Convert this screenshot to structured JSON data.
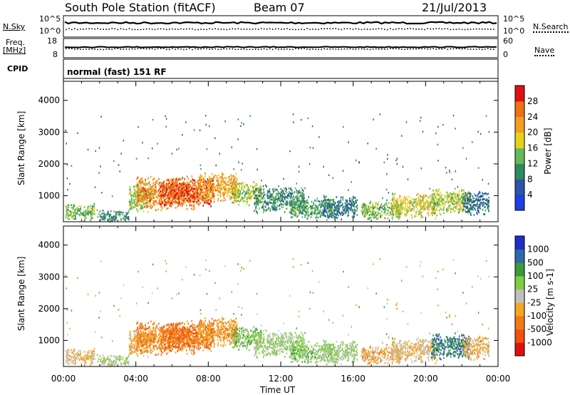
{
  "header": {
    "station": "South Pole Station (fitACF)",
    "beam": "Beam 07",
    "date": "21/Jul/2013"
  },
  "top_panels": {
    "nsky_label": "N.Sky",
    "nsky_ticks": [
      "10^5",
      "10^0"
    ],
    "nsearch_label": "N.Search",
    "nsearch_ticks": [
      "10^5",
      "10^0"
    ],
    "freq_label": "Freq.",
    "freq_unit": "[MHz]",
    "freq_ticks": [
      "18",
      "8"
    ],
    "nave_label": "Nave",
    "nave_ticks": [
      "60",
      "0"
    ],
    "cpid_label": "CPID",
    "cpid_value": "normal (fast) 151 RF"
  },
  "colors": {
    "power": [
      "#1f3fe0",
      "#2b55a8",
      "#2e8a5f",
      "#66b85a",
      "#e6d21e",
      "#f0a020",
      "#f07018",
      "#e01010"
    ],
    "velocity": [
      "#e01010",
      "#f05010",
      "#f07a18",
      "#f6a623",
      "#c0c0c0",
      "#7fd040",
      "#3d9a3a",
      "#2e6aa8",
      "#1e2fc8"
    ]
  },
  "chart_data": [
    {
      "type": "heatmap",
      "name": "power",
      "xlabel": "",
      "ylabel": "Slant Range [km]",
      "xlim": [
        "00:00",
        "24:00"
      ],
      "ylim": [
        180,
        4600
      ],
      "yticks": [
        "1000",
        "2000",
        "3000",
        "4000"
      ],
      "colorbar_label": "Power [dB]",
      "colorbar_ticks": [
        "4",
        "8",
        "12",
        "16",
        "20",
        "24",
        "28"
      ],
      "colorbar_range": [
        0,
        32
      ],
      "blobs": [
        {
          "t0": 0.1,
          "t1": 1.7,
          "r0": 220,
          "r1": 800,
          "v": 14
        },
        {
          "t0": 1.8,
          "t1": 3.6,
          "r0": 200,
          "r1": 600,
          "v": 10
        },
        {
          "t0": 3.6,
          "t1": 4.8,
          "r0": 500,
          "r1": 1450,
          "v": 14
        },
        {
          "t0": 4.0,
          "t1": 7.4,
          "r0": 550,
          "r1": 1650,
          "v": 24
        },
        {
          "t0": 5.3,
          "t1": 8.3,
          "r0": 650,
          "r1": 1600,
          "v": 28
        },
        {
          "t0": 7.4,
          "t1": 9.6,
          "r0": 800,
          "r1": 1800,
          "v": 22
        },
        {
          "t0": 9.3,
          "t1": 10.9,
          "r0": 700,
          "r1": 1500,
          "v": 16
        },
        {
          "t0": 10.5,
          "t1": 13.3,
          "r0": 450,
          "r1": 1350,
          "v": 10
        },
        {
          "t0": 12.5,
          "t1": 14.8,
          "r0": 300,
          "r1": 1000,
          "v": 12
        },
        {
          "t0": 14.3,
          "t1": 16.2,
          "r0": 250,
          "r1": 1050,
          "v": 8
        },
        {
          "t0": 16.4,
          "t1": 18.6,
          "r0": 250,
          "r1": 900,
          "v": 14
        },
        {
          "t0": 18.1,
          "t1": 20.6,
          "r0": 300,
          "r1": 1100,
          "v": 18
        },
        {
          "t0": 20.3,
          "t1": 22.4,
          "r0": 400,
          "r1": 1300,
          "v": 16
        },
        {
          "t0": 22.0,
          "t1": 23.5,
          "r0": 400,
          "r1": 1200,
          "v": 8
        }
      ]
    },
    {
      "type": "heatmap",
      "name": "velocity",
      "xlabel": "Time UT",
      "ylabel": "Slant Range [km]",
      "xlim": [
        "00:00",
        "24:00"
      ],
      "ylim": [
        180,
        4600
      ],
      "xticks": [
        "00:00",
        "04:00",
        "08:00",
        "12:00",
        "16:00",
        "20:00",
        "00:00"
      ],
      "yticks": [
        "1000",
        "2000",
        "3000",
        "4000"
      ],
      "colorbar_label": "Velocity [m s-1]",
      "colorbar_ticks": [
        "-1000",
        "-500",
        "-100",
        "-25",
        "25",
        "100",
        "500",
        "1000"
      ],
      "colorbar_range": [
        -1200,
        1200
      ],
      "blobs": [
        {
          "t0": 0.1,
          "t1": 1.7,
          "r0": 220,
          "r1": 800,
          "v": -150
        },
        {
          "t0": 1.8,
          "t1": 3.6,
          "r0": 200,
          "r1": 600,
          "v": 80
        },
        {
          "t0": 3.6,
          "t1": 4.8,
          "r0": 500,
          "r1": 1450,
          "v": -300
        },
        {
          "t0": 4.0,
          "t1": 7.4,
          "r0": 550,
          "r1": 1650,
          "v": -450
        },
        {
          "t0": 5.3,
          "t1": 8.3,
          "r0": 650,
          "r1": 1600,
          "v": -600
        },
        {
          "t0": 7.4,
          "t1": 9.6,
          "r0": 800,
          "r1": 1800,
          "v": -400
        },
        {
          "t0": 9.3,
          "t1": 10.9,
          "r0": 700,
          "r1": 1500,
          "v": 300
        },
        {
          "t0": 10.5,
          "t1": 13.3,
          "r0": 450,
          "r1": 1350,
          "v": 150
        },
        {
          "t0": 12.5,
          "t1": 14.8,
          "r0": 300,
          "r1": 1000,
          "v": 250
        },
        {
          "t0": 14.3,
          "t1": 16.2,
          "r0": 250,
          "r1": 1050,
          "v": 120
        },
        {
          "t0": 16.4,
          "t1": 18.6,
          "r0": 250,
          "r1": 900,
          "v": -250
        },
        {
          "t0": 18.1,
          "t1": 20.6,
          "r0": 300,
          "r1": 1100,
          "v": -150
        },
        {
          "t0": 20.3,
          "t1": 22.4,
          "r0": 400,
          "r1": 1300,
          "v": 700
        },
        {
          "t0": 22.0,
          "t1": 23.5,
          "r0": 400,
          "r1": 1200,
          "v": -200
        }
      ]
    }
  ]
}
